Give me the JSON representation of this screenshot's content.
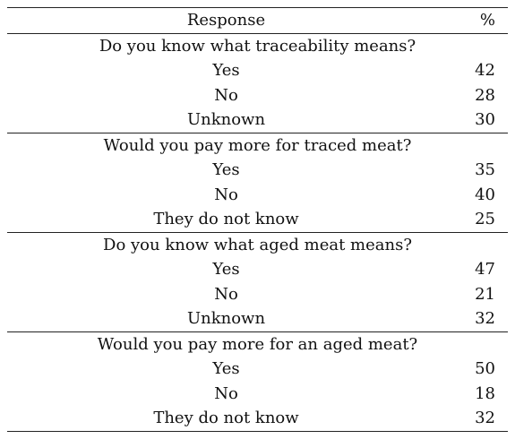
{
  "table": {
    "header": {
      "response": "Response",
      "percent": "%"
    },
    "sections": [
      {
        "question": "Do you know what traceability means?",
        "answers": [
          {
            "label": "Yes",
            "value": "42"
          },
          {
            "label": "No",
            "value": "28"
          },
          {
            "label": "Unknown",
            "value": "30"
          }
        ]
      },
      {
        "question": "Would you pay more for traced meat?",
        "answers": [
          {
            "label": "Yes",
            "value": "35"
          },
          {
            "label": "No",
            "value": "40"
          },
          {
            "label": "They do not know",
            "value": "25"
          }
        ]
      },
      {
        "question": "Do you know what aged meat means?",
        "answers": [
          {
            "label": "Yes",
            "value": "47"
          },
          {
            "label": "No",
            "value": "21"
          },
          {
            "label": "Unknown",
            "value": "32"
          }
        ]
      },
      {
        "question": "Would you pay more for an aged meat?",
        "answers": [
          {
            "label": "Yes",
            "value": "50"
          },
          {
            "label": "No",
            "value": "18"
          },
          {
            "label": "They do not know",
            "value": "32"
          }
        ]
      }
    ]
  }
}
